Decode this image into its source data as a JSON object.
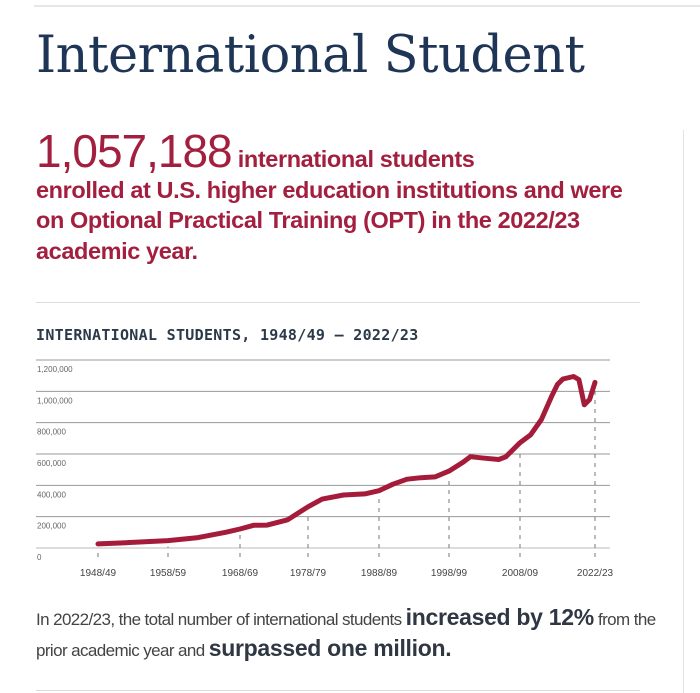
{
  "page": {
    "title": "International Student",
    "headline": {
      "number": "1,057,188",
      "lead": " international students",
      "rest": "enrolled at U.S. higher education institutions and were on Optional Practical Training (OPT) in the 2022/23 academic year."
    },
    "footer": {
      "part1": "In 2022/23, the total number of international students ",
      "bold1": "increased by 12%",
      "part2": " from the prior academic year and ",
      "bold2": "surpassed one million."
    }
  },
  "colors": {
    "title": "#1e3556",
    "accent": "#a31f3f",
    "line": "#a51c3a"
  },
  "chart_data": {
    "type": "line",
    "title": "INTERNATIONAL STUDENTS, 1948/49 – 2022/23",
    "xlabel": "",
    "ylabel": "",
    "ylim": [
      0,
      1200000
    ],
    "grid": true,
    "y_ticks": [
      "0",
      "200,000",
      "400,000",
      "600,000",
      "800,000",
      "1,000,000",
      "1,200,000"
    ],
    "x_ticks": [
      "1948/49",
      "1958/59",
      "1968/69",
      "1978/79",
      "1988/89",
      "1998/99",
      "2008/09",
      "2022/23"
    ],
    "x_tick_years": [
      1948,
      1958,
      1968,
      1978,
      1988,
      1998,
      2008,
      2022
    ],
    "series": [
      {
        "x": [
          1948,
          1952,
          1958,
          1962,
          1966,
          1968,
          1970,
          1972,
          1975,
          1978,
          1980,
          1983,
          1986,
          1988,
          1990,
          1992,
          1994,
          1996,
          1998,
          2000,
          2001,
          2003,
          2005,
          2006,
          2008,
          2010,
          2012,
          2014,
          2015,
          2016,
          2018,
          2019,
          2020,
          2021,
          2022
        ],
        "y": [
          26000,
          34000,
          47000,
          65000,
          100000,
          121000,
          145000,
          146000,
          180000,
          263000,
          312000,
          338000,
          345000,
          366000,
          407000,
          439000,
          449000,
          454000,
          491000,
          548000,
          583000,
          573000,
          565000,
          582000,
          672000,
          723000,
          820000,
          975000,
          1044000,
          1079000,
          1095000,
          1075000,
          914000,
          948000,
          1057000
        ]
      }
    ]
  }
}
